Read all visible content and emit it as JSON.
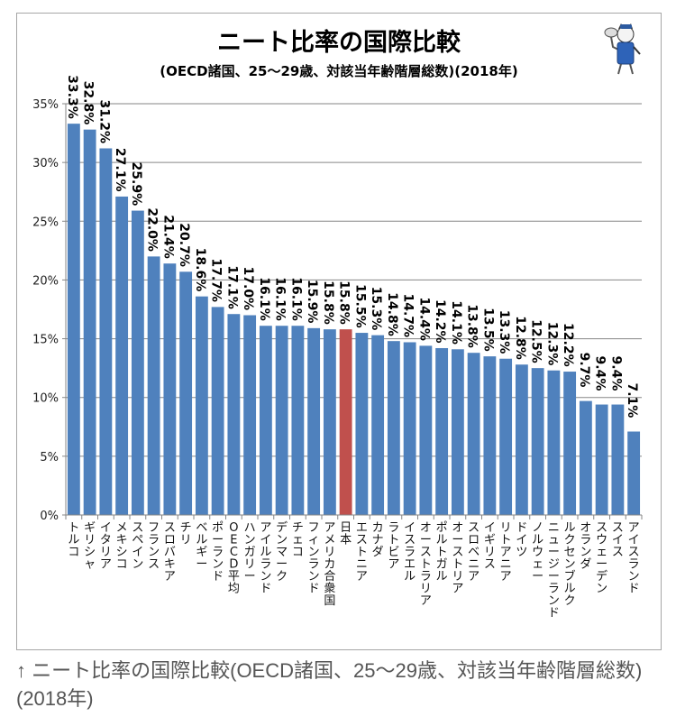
{
  "caption": "↑ ニート比率の国際比較(OECD諸国、25〜29歳、対該当年齢階層総数)(2018年)",
  "mascot_icon": "cat-mascot-icon",
  "colors": {
    "bar": "#4F81BD",
    "highlight": "#C0504D",
    "grid": "#868686",
    "axis": "#868686"
  },
  "chart_data": {
    "type": "bar",
    "title": "ニート比率の国際比較",
    "subtitle": "(OECD諸国、25〜29歳、対該当年齢階層総数)(2018年)",
    "xlabel": "",
    "ylabel": "",
    "ylim": [
      0,
      35
    ],
    "yticks": [
      0,
      5,
      10,
      15,
      20,
      25,
      30,
      35
    ],
    "ytick_labels": [
      "0%",
      "5%",
      "10%",
      "15%",
      "20%",
      "25%",
      "30%",
      "35%"
    ],
    "grid": true,
    "legend": "none",
    "highlight_category": "日本",
    "categories": [
      "トルコ",
      "ギリシャ",
      "イタリア",
      "メキシコ",
      "スペイン",
      "フランス",
      "スロバキア",
      "チリ",
      "ベルギー",
      "ポーランド",
      "OECD平均",
      "ハンガリー",
      "アイルランド",
      "デンマーク",
      "チェコ",
      "フィンランド",
      "アメリカ合衆国",
      "日本",
      "エストニア",
      "カナダ",
      "ラトビア",
      "イスラエル",
      "オーストラリア",
      "ポルトガル",
      "オーストリア",
      "スロベニア",
      "イギリス",
      "リトアニア",
      "ドイツ",
      "ノルウェー",
      "ニュージーランド",
      "ルクセンブルク",
      "オランダ",
      "スウェーデン",
      "スイス",
      "アイスランド"
    ],
    "values": [
      33.3,
      32.8,
      31.2,
      27.1,
      25.9,
      22.0,
      21.4,
      20.7,
      18.6,
      17.7,
      17.1,
      17.0,
      16.1,
      16.1,
      16.1,
      15.9,
      15.8,
      15.8,
      15.5,
      15.3,
      14.8,
      14.7,
      14.4,
      14.2,
      14.1,
      13.8,
      13.5,
      13.3,
      12.8,
      12.5,
      12.3,
      12.2,
      9.7,
      9.4,
      9.4,
      7.1
    ],
    "data_labels": [
      "33.3%",
      "32.8%",
      "31.2%",
      "27.1%",
      "25.9%",
      "22.0%",
      "21.4%",
      "20.7%",
      "18.6%",
      "17.7%",
      "17.1%",
      "17.0%",
      "16.1%",
      "16.1%",
      "16.1%",
      "15.9%",
      "15.8%",
      "15.8%",
      "15.5%",
      "15.3%",
      "14.8%",
      "14.7%",
      "14.4%",
      "14.2%",
      "14.1%",
      "13.8%",
      "13.5%",
      "13.3%",
      "12.8%",
      "12.5%",
      "12.3%",
      "12.2%",
      "9.7%",
      "9.4%",
      "9.4%",
      "7.1%"
    ]
  }
}
